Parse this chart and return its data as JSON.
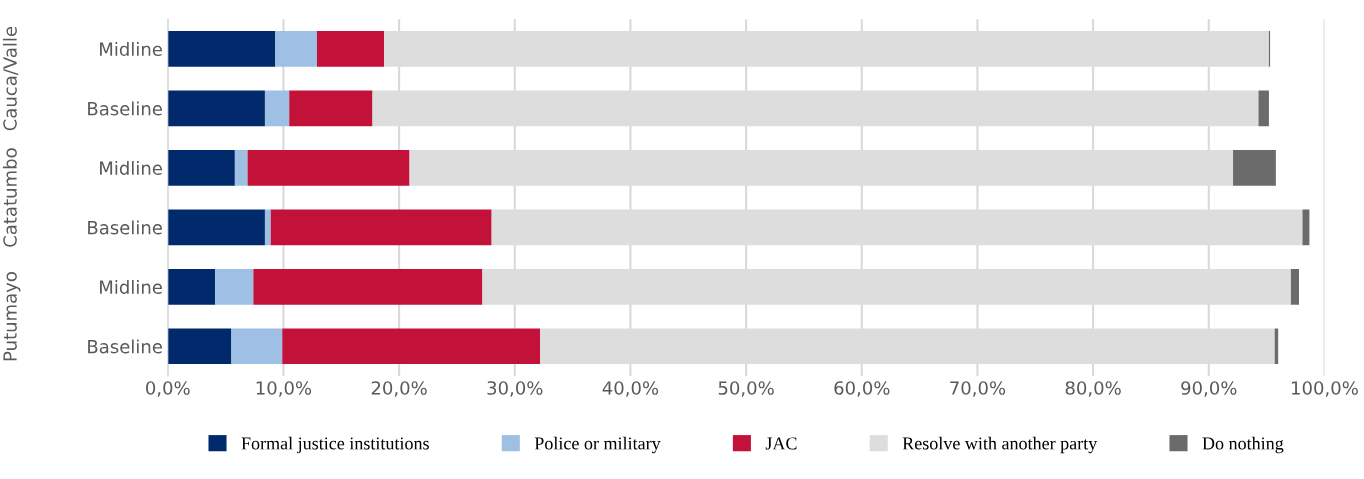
{
  "chart_data": {
    "type": "bar",
    "orientation": "horizontal",
    "stacked": true,
    "categories": [
      "Midline",
      "Baseline",
      "Midline",
      "Baseline",
      "Midline",
      "Baseline"
    ],
    "annotations": [
      "Cauca/Valle",
      "Catatumbo",
      "Putumayo"
    ],
    "series": [
      {
        "name": "Formal justice institutions",
        "color": "#002a6c",
        "values": [
          9.3,
          8.4,
          5.8,
          8.4,
          4.1,
          5.5
        ]
      },
      {
        "name": "Police or military",
        "color": "#9dc0e4",
        "values": [
          3.6,
          2.1,
          1.1,
          0.5,
          3.3,
          4.4
        ]
      },
      {
        "name": "JAC",
        "color": "#c3123a",
        "values": [
          5.8,
          7.2,
          14.0,
          19.1,
          19.8,
          22.3
        ]
      },
      {
        "name": "Resolve with another party",
        "color": "#dddddd",
        "values": [
          76.5,
          76.6,
          71.2,
          70.1,
          69.9,
          63.5
        ]
      },
      {
        "name": "Do nothing",
        "color": "#6b6b6b",
        "values": [
          0.1,
          0.9,
          3.7,
          0.6,
          0.7,
          0.3
        ]
      }
    ],
    "xlim": [
      0,
      100
    ],
    "xticks": [
      {
        "value": 0,
        "label": "0,0%"
      },
      {
        "value": 10,
        "label": "10,0%"
      },
      {
        "value": 20,
        "label": "20,0%"
      },
      {
        "value": 30,
        "label": "30,0%"
      },
      {
        "value": 40,
        "label": "40,0%"
      },
      {
        "value": 50,
        "label": "50,0%"
      },
      {
        "value": 60,
        "label": "60,0%"
      },
      {
        "value": 70,
        "label": "70,0%"
      },
      {
        "value": 80,
        "label": "80,0%"
      },
      {
        "value": 90,
        "label": "90,0%"
      },
      {
        "value": 100,
        "label": "100,0%"
      }
    ],
    "grid": "x",
    "legend": "bottom"
  }
}
